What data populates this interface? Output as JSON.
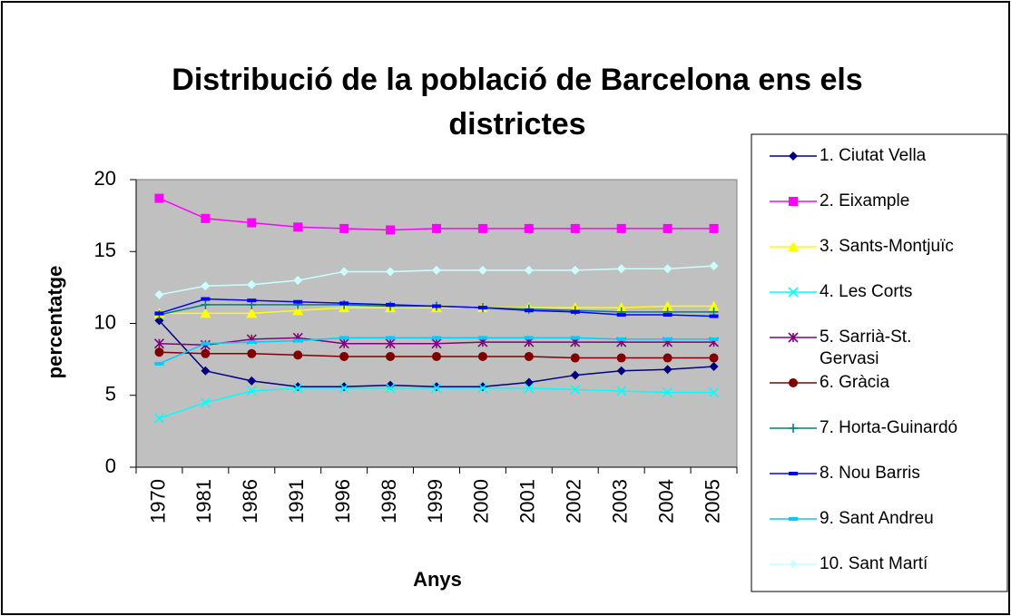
{
  "chart_data": {
    "type": "line",
    "title": "Distribució de la població de Barcelona ens els districtes",
    "xlabel": "Anys",
    "ylabel": "percentatge",
    "categories": [
      "1970",
      "1981",
      "1986",
      "1991",
      "1996",
      "1998",
      "1999",
      "2000",
      "2001",
      "2002",
      "2003",
      "2004",
      "2005"
    ],
    "ylim": [
      0,
      20
    ],
    "yticks": [
      0,
      5,
      10,
      15,
      20
    ],
    "grid": false,
    "legend": "right",
    "series": [
      {
        "name": "1. Ciutat Vella",
        "color": "#000080",
        "marker": "diamond",
        "values": [
          10.2,
          6.7,
          6.0,
          5.6,
          5.6,
          5.7,
          5.6,
          5.6,
          5.9,
          6.4,
          6.7,
          6.8,
          7.0
        ]
      },
      {
        "name": "2. Eixample",
        "color": "#ff00ff",
        "marker": "square",
        "values": [
          18.7,
          17.3,
          17.0,
          16.7,
          16.6,
          16.5,
          16.6,
          16.6,
          16.6,
          16.6,
          16.6,
          16.6,
          16.6
        ]
      },
      {
        "name": "3. Sants-Montjuïc",
        "color": "#ffff00",
        "marker": "triangle",
        "values": [
          10.7,
          10.7,
          10.7,
          10.9,
          11.1,
          11.1,
          11.1,
          11.1,
          11.1,
          11.1,
          11.1,
          11.2,
          11.2
        ]
      },
      {
        "name": "4. Les Corts",
        "color": "#00ffff",
        "marker": "x",
        "values": [
          3.4,
          4.5,
          5.3,
          5.5,
          5.5,
          5.5,
          5.5,
          5.5,
          5.5,
          5.4,
          5.3,
          5.2,
          5.2
        ]
      },
      {
        "name": "5. Sarrià-St. Gervasi",
        "color": "#800080",
        "marker": "star",
        "values": [
          8.6,
          8.5,
          8.9,
          9.0,
          8.6,
          8.6,
          8.6,
          8.7,
          8.7,
          8.7,
          8.7,
          8.7,
          8.7
        ]
      },
      {
        "name": "6. Gràcia",
        "color": "#800000",
        "marker": "circle",
        "values": [
          8.0,
          7.9,
          7.9,
          7.8,
          7.7,
          7.7,
          7.7,
          7.7,
          7.7,
          7.6,
          7.6,
          7.6,
          7.6
        ]
      },
      {
        "name": "7. Horta-Guinardó",
        "color": "#008080",
        "marker": "plus",
        "values": [
          10.6,
          11.3,
          11.3,
          11.3,
          11.3,
          11.2,
          11.2,
          11.1,
          11.0,
          10.9,
          10.8,
          10.8,
          10.8
        ]
      },
      {
        "name": "8. Nou Barris",
        "color": "#0000ff",
        "marker": "dash",
        "values": [
          10.7,
          11.7,
          11.6,
          11.5,
          11.4,
          11.3,
          11.2,
          11.1,
          10.9,
          10.8,
          10.6,
          10.6,
          10.5
        ]
      },
      {
        "name": "9. Sant Andreu",
        "color": "#00ccff",
        "marker": "dash",
        "values": [
          7.2,
          8.6,
          8.7,
          8.8,
          9.0,
          9.0,
          9.0,
          9.0,
          9.0,
          9.0,
          8.9,
          8.9,
          8.9
        ]
      },
      {
        "name": "10. Sant Martí",
        "color": "#ccffff",
        "marker": "diamond",
        "values": [
          12.0,
          12.6,
          12.7,
          13.0,
          13.6,
          13.6,
          13.7,
          13.7,
          13.7,
          13.7,
          13.8,
          13.8,
          14.0
        ]
      }
    ]
  }
}
